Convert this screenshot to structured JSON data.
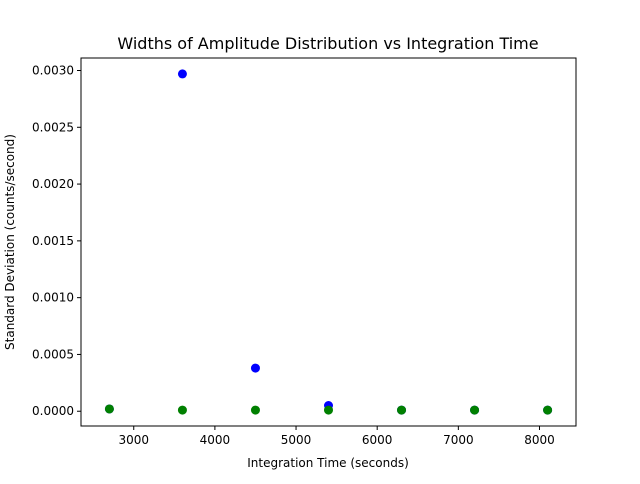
{
  "chart_data": {
    "type": "scatter",
    "title": "Widths of Amplitude Distribution vs Integration Time",
    "xlabel": "Integration Time (seconds)",
    "ylabel": "Standard Deviation (counts/second)",
    "xlim": [
      2350,
      8450
    ],
    "ylim": [
      -0.00013,
      0.00311
    ],
    "xticks": [
      3000,
      4000,
      5000,
      6000,
      7000,
      8000
    ],
    "xtick_labels": [
      "3000",
      "4000",
      "5000",
      "6000",
      "7000",
      "8000"
    ],
    "yticks": [
      0.0,
      0.0005,
      0.001,
      0.0015,
      0.002,
      0.0025,
      0.003
    ],
    "ytick_labels": [
      "0.0000",
      "0.0005",
      "0.0010",
      "0.0015",
      "0.0020",
      "0.0025",
      "0.0030"
    ],
    "grid": false,
    "series": [
      {
        "color": "#0000ff",
        "points": [
          {
            "x": 2700,
            "y": 2e-05
          },
          {
            "x": 3600,
            "y": 0.00297
          },
          {
            "x": 4500,
            "y": 0.00038
          },
          {
            "x": 5400,
            "y": 5e-05
          },
          {
            "x": 6300,
            "y": 1e-05
          },
          {
            "x": 7200,
            "y": 1e-05
          },
          {
            "x": 8100,
            "y": 1e-05
          }
        ]
      },
      {
        "color": "#008000",
        "points": [
          {
            "x": 2700,
            "y": 2e-05
          },
          {
            "x": 3600,
            "y": 1e-05
          },
          {
            "x": 4500,
            "y": 1e-05
          },
          {
            "x": 5400,
            "y": 1e-05
          },
          {
            "x": 6300,
            "y": 1e-05
          },
          {
            "x": 7200,
            "y": 1e-05
          },
          {
            "x": 8100,
            "y": 1e-05
          }
        ]
      }
    ]
  }
}
